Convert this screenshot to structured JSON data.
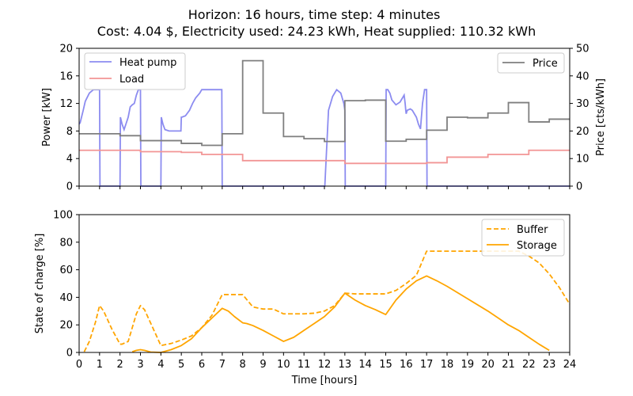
{
  "chart_data": [
    {
      "type": "line",
      "title_line1": "Horizon: 16 hours, time step: 4 minutes",
      "title_line2": "Cost: 4.04 $, Electricity used: 24.23 kWh, Heat supplied: 110.32 kWh",
      "xlabel": "",
      "ylabel": "Power [kW]",
      "ylabel_right": "Price [cts/kWh]",
      "xlim": [
        0,
        24
      ],
      "ylim": [
        0,
        20
      ],
      "ylim_right": [
        0,
        50
      ],
      "yticks": [
        0,
        4,
        8,
        12,
        16,
        20
      ],
      "yticks_right": [
        0,
        10,
        20,
        30,
        40,
        50
      ],
      "grid": false,
      "legend_left": [
        {
          "name": "Heat pump",
          "color": "#8c8cf0"
        },
        {
          "name": "Load",
          "color": "#f29595"
        }
      ],
      "legend_right": [
        {
          "name": "Price",
          "color": "#7f7f7f"
        }
      ],
      "series": [
        {
          "name": "Heat pump",
          "axis": "left",
          "color": "#8c8cf0",
          "x": [
            0,
            0.05,
            0.1,
            0.2,
            0.3,
            0.5,
            0.7,
            0.8,
            0.9,
            0.95,
            0.97,
            1.0,
            1.02,
            1.98,
            2.0,
            2.02,
            2.1,
            2.2,
            2.4,
            2.5,
            2.6,
            2.7,
            2.8,
            2.9,
            2.96,
            2.98,
            3.0,
            3.02,
            3.98,
            4.0,
            4.02,
            4.1,
            4.2,
            4.4,
            4.6,
            4.8,
            4.98,
            5.0,
            5.02,
            5.2,
            5.4,
            5.55,
            5.7,
            5.9,
            6.0,
            6.02,
            6.98,
            7.0,
            7.02,
            9.98,
            10.0,
            10.02,
            11.98,
            12.0,
            12.02,
            12.2,
            12.4,
            12.6,
            12.8,
            12.95,
            13.0,
            13.02,
            14.98,
            15.0,
            15.02,
            15.1,
            15.2,
            15.3,
            15.5,
            15.7,
            15.8,
            15.9,
            15.95,
            15.98,
            16.0,
            16.05,
            16.2,
            16.3,
            16.5,
            16.6,
            16.7,
            16.8,
            16.9,
            16.95,
            16.98,
            17.0,
            17.02,
            24
          ],
          "y": [
            9.0,
            9.2,
            9.8,
            11.0,
            12.3,
            13.5,
            14.0,
            14.0,
            14.0,
            14.0,
            14.0,
            14.0,
            0,
            0,
            0,
            10.0,
            9.0,
            8.2,
            10.0,
            11.5,
            11.8,
            12.0,
            13.2,
            14.0,
            14.0,
            14.0,
            14.0,
            0,
            0,
            0,
            10.0,
            9.0,
            8.2,
            8.0,
            8.0,
            8.0,
            8.0,
            10.0,
            10.0,
            10.2,
            11.0,
            12.0,
            12.8,
            13.5,
            14.0,
            14.0,
            14.0,
            0,
            0,
            0,
            0,
            0,
            0,
            0,
            0,
            11.0,
            13.0,
            14.0,
            13.5,
            12.0,
            11.0,
            0,
            0,
            0,
            14.0,
            14.0,
            13.5,
            12.5,
            11.8,
            12.2,
            12.7,
            13.2,
            12.0,
            11.0,
            10.5,
            11.0,
            11.2,
            11.0,
            10.0,
            9.0,
            8.3,
            12.0,
            14.0,
            14.0,
            14.0,
            14.0,
            0,
            0
          ]
        },
        {
          "name": "Load",
          "axis": "left",
          "color": "#f29595",
          "x": [
            0,
            3,
            3,
            5,
            5,
            6,
            6,
            8,
            8,
            13,
            13,
            17,
            17,
            18,
            18,
            20,
            20,
            22,
            22,
            24
          ],
          "y": [
            5.2,
            5.2,
            5.0,
            5.0,
            4.9,
            4.9,
            4.6,
            4.6,
            3.7,
            3.7,
            3.3,
            3.3,
            3.4,
            3.4,
            4.2,
            4.2,
            4.6,
            4.6,
            5.2,
            5.2
          ]
        },
        {
          "name": "Price",
          "axis": "right",
          "color": "#7f7f7f",
          "x": [
            0,
            2,
            2,
            3,
            3,
            4,
            4,
            5,
            5,
            6,
            6,
            7,
            7,
            8,
            8,
            9,
            9,
            10,
            10,
            11,
            11,
            12,
            12,
            13,
            13,
            14,
            14,
            15,
            15,
            16,
            16,
            17,
            17,
            18,
            18,
            19,
            19,
            20,
            20,
            21,
            21,
            22,
            22,
            23,
            23,
            24
          ],
          "y": [
            19,
            19,
            18.3,
            18.3,
            16.5,
            16.5,
            16.5,
            16.5,
            15.5,
            15.5,
            14.8,
            14.8,
            19,
            19,
            45.5,
            45.5,
            26.5,
            26.5,
            18,
            18,
            17.2,
            17.2,
            16.2,
            16.2,
            31,
            31,
            31.2,
            31.2,
            16.3,
            16.3,
            17,
            17,
            20.3,
            20.3,
            25,
            25,
            24.8,
            24.8,
            26.5,
            26.5,
            30.3,
            30.3,
            23.3,
            23.3,
            24.3,
            24.3
          ]
        }
      ]
    },
    {
      "type": "line",
      "xlabel": "Time [hours]",
      "ylabel": "State of charge [%]",
      "xlim": [
        0,
        24
      ],
      "ylim": [
        0,
        100
      ],
      "xticks": [
        0,
        1,
        2,
        3,
        4,
        5,
        6,
        7,
        8,
        9,
        10,
        11,
        12,
        13,
        14,
        15,
        16,
        17,
        18,
        19,
        20,
        21,
        22,
        23,
        24
      ],
      "yticks": [
        0,
        20,
        40,
        60,
        80,
        100
      ],
      "grid": false,
      "legend_placement": "top-right",
      "legend": [
        {
          "name": "Buffer",
          "color": "#ffa500",
          "style": "dashed"
        },
        {
          "name": "Storage",
          "color": "#ffa500",
          "style": "solid"
        }
      ],
      "series": [
        {
          "name": "Buffer",
          "color": "#ffa500",
          "dashed": true,
          "x": [
            0.25,
            0.5,
            0.8,
            1.0,
            1.2,
            1.6,
            2.0,
            2.1,
            2.4,
            2.6,
            2.8,
            3.0,
            3.2,
            3.6,
            4.0,
            4.5,
            5.0,
            5.5,
            6.0,
            6.5,
            7.0,
            7.3,
            8.0,
            8.5,
            9.0,
            9.5,
            10.0,
            11.0,
            11.5,
            12.0,
            12.5,
            13.0,
            13.5,
            14.0,
            15.0,
            15.5,
            16.0,
            16.5,
            17.0,
            18.0,
            19.0,
            20.0,
            21.0,
            21.5,
            22.0,
            22.5,
            23.0,
            23.5,
            24.0
          ],
          "y": [
            0.5,
            8,
            22,
            34,
            30,
            17,
            6,
            6,
            8,
            18,
            28,
            34,
            31,
            18,
            5,
            6.5,
            9,
            12,
            18,
            27,
            42,
            42,
            42,
            33,
            31.5,
            31.5,
            28,
            28,
            28.5,
            30,
            34,
            43,
            42.5,
            42.5,
            42.5,
            45,
            50,
            56,
            73.5,
            73.5,
            73.5,
            73.5,
            73.5,
            73.5,
            70,
            65,
            57,
            47,
            35
          ]
        },
        {
          "name": "Storage",
          "color": "#ffa500",
          "dashed": false,
          "x": [
            2.6,
            2.8,
            3.0,
            3.2,
            3.5,
            4.0,
            4.5,
            5.0,
            5.5,
            6.0,
            6.5,
            7.0,
            7.3,
            7.6,
            8.0,
            8.2,
            8.5,
            9.0,
            9.5,
            10.0,
            10.5,
            11.0,
            11.5,
            12.0,
            12.5,
            13.0,
            13.5,
            14.0,
            14.5,
            15.0,
            15.5,
            16.0,
            16.5,
            17.0,
            17.5,
            18.0,
            19.0,
            20.0,
            21.0,
            21.5,
            22.0,
            22.5,
            23.0
          ],
          "y": [
            0.5,
            1.5,
            2,
            1.5,
            0.3,
            0,
            2,
            5,
            10,
            18,
            25,
            32,
            30,
            26,
            21.5,
            21,
            19.5,
            16,
            12,
            8,
            11,
            16,
            21,
            26,
            33,
            43,
            38,
            34,
            31,
            27.5,
            38,
            46,
            52,
            55.5,
            52,
            48,
            39,
            30,
            20,
            16,
            11,
            6,
            1.5
          ]
        }
      ]
    }
  ]
}
